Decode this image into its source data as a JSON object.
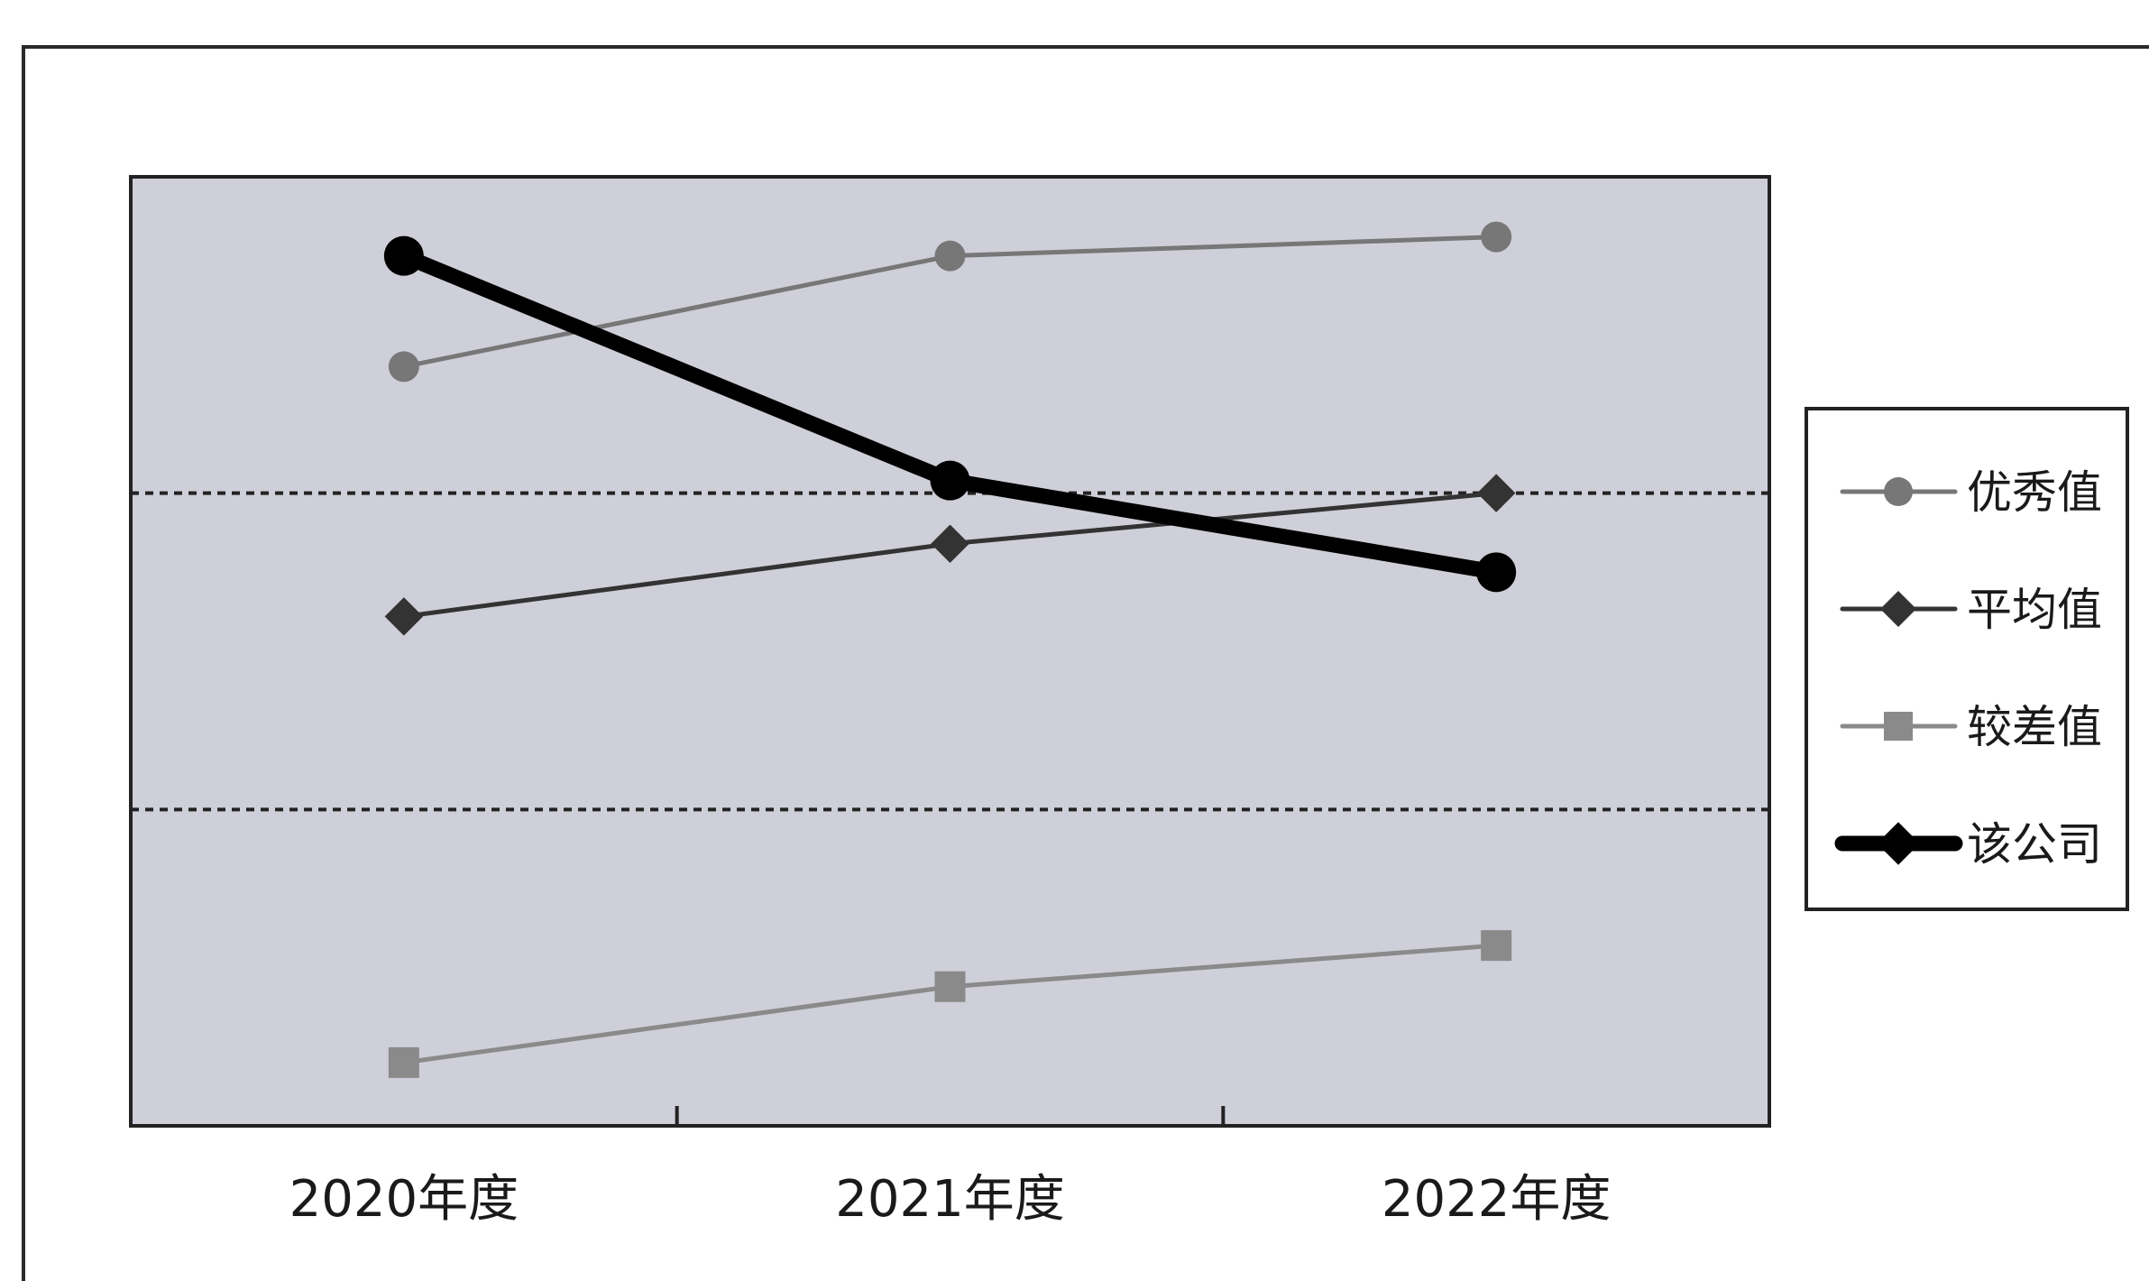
{
  "chart_data": {
    "type": "line",
    "title": "",
    "xlabel": "",
    "ylabel": "",
    "categories": [
      "2020年度",
      "2021年度",
      "2022年度"
    ],
    "ylim": [
      0,
      3
    ],
    "grid": {
      "horizontal": true,
      "style": "dashed"
    },
    "legend_position": "right",
    "series": [
      {
        "name": "优秀值",
        "values": [
          2.4,
          2.75,
          2.81
        ],
        "color": "#777777",
        "marker": "circle",
        "emphasis": false
      },
      {
        "name": "平均值",
        "values": [
          1.61,
          1.84,
          2.0
        ],
        "color": "#333333",
        "marker": "diamond",
        "emphasis": false
      },
      {
        "name": "较差值",
        "values": [
          0.2,
          0.44,
          0.57
        ],
        "color": "#8a8a8a",
        "marker": "square",
        "emphasis": false
      },
      {
        "name": "该公司",
        "values": [
          2.75,
          2.04,
          1.75
        ],
        "color": "#000000",
        "marker": "diamond",
        "emphasis": true
      }
    ],
    "colors": {
      "plot_background": "#cfcfd9",
      "gridline": "#222222",
      "axis": "#222222"
    }
  }
}
